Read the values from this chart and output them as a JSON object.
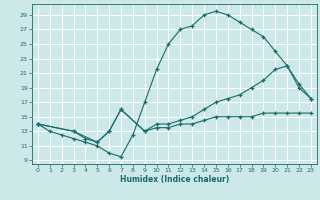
{
  "xlabel": "Humidex (Indice chaleur)",
  "bg_color": "#cde8e8",
  "grid_color": "#ffffff",
  "line_color": "#1a6b6b",
  "xlim": [
    -0.5,
    23.5
  ],
  "ylim": [
    8.5,
    30.5
  ],
  "xticks": [
    0,
    1,
    2,
    3,
    4,
    5,
    6,
    7,
    8,
    9,
    10,
    11,
    12,
    13,
    14,
    15,
    16,
    17,
    18,
    19,
    20,
    21,
    22,
    23
  ],
  "yticks": [
    9,
    11,
    13,
    15,
    17,
    19,
    21,
    23,
    25,
    27,
    29
  ],
  "line1_x": [
    0,
    1,
    2,
    3,
    4,
    5,
    6,
    7,
    8,
    9,
    10,
    11,
    12,
    13,
    14,
    15,
    16,
    17,
    18,
    19,
    20,
    21,
    22,
    23
  ],
  "line1_y": [
    14,
    13,
    12.5,
    12,
    11.5,
    11,
    10,
    9.5,
    12.5,
    17,
    21.5,
    25,
    27,
    27.5,
    29,
    29.5,
    29,
    28,
    27,
    26,
    24,
    22,
    19,
    17.5
  ],
  "line2_x": [
    0,
    3,
    4,
    5,
    6,
    7,
    9,
    10,
    11,
    12,
    13,
    14,
    15,
    16,
    17,
    18,
    19,
    20,
    21,
    22,
    23
  ],
  "line2_y": [
    14,
    13,
    12,
    11.5,
    13,
    16,
    13,
    14,
    14,
    14.5,
    15,
    16,
    17,
    17.5,
    18,
    19,
    20,
    21.5,
    22,
    19.5,
    17.5
  ],
  "line3_x": [
    0,
    3,
    5,
    6,
    7,
    9,
    10,
    11,
    12,
    13,
    14,
    15,
    16,
    17,
    18,
    19,
    20,
    21,
    22,
    23
  ],
  "line3_y": [
    14,
    13,
    11.5,
    13,
    16,
    13,
    13.5,
    13.5,
    14,
    14,
    14.5,
    15,
    15,
    15,
    15,
    15.5,
    15.5,
    15.5,
    15.5,
    15.5
  ]
}
